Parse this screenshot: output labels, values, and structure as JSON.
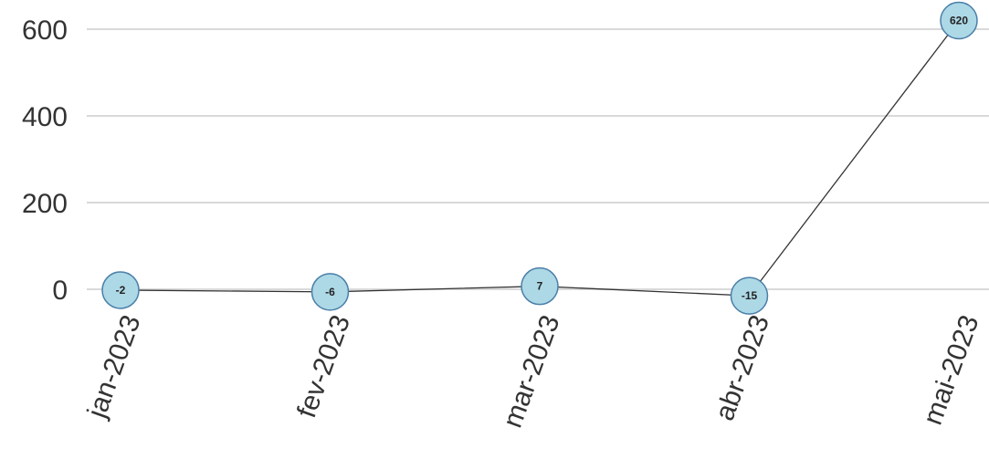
{
  "chart_data": {
    "type": "line",
    "categories": [
      "jan-2023",
      "fev-2023",
      "mar-2023",
      "abr-2023",
      "mai-2023"
    ],
    "values": [
      -2,
      -6,
      7,
      -15,
      620
    ],
    "data_labels": [
      "-2",
      "-6",
      "7",
      "-15",
      "620"
    ],
    "y_ticks": [
      "0",
      "200",
      "400",
      "600"
    ],
    "ylim": [
      -50,
      640
    ],
    "grid": "horizontal",
    "colors": {
      "point_fill": "#add8e6",
      "point_stroke": "#4a7fa8",
      "line": "#333333",
      "grid": "#d9d9d9"
    }
  }
}
